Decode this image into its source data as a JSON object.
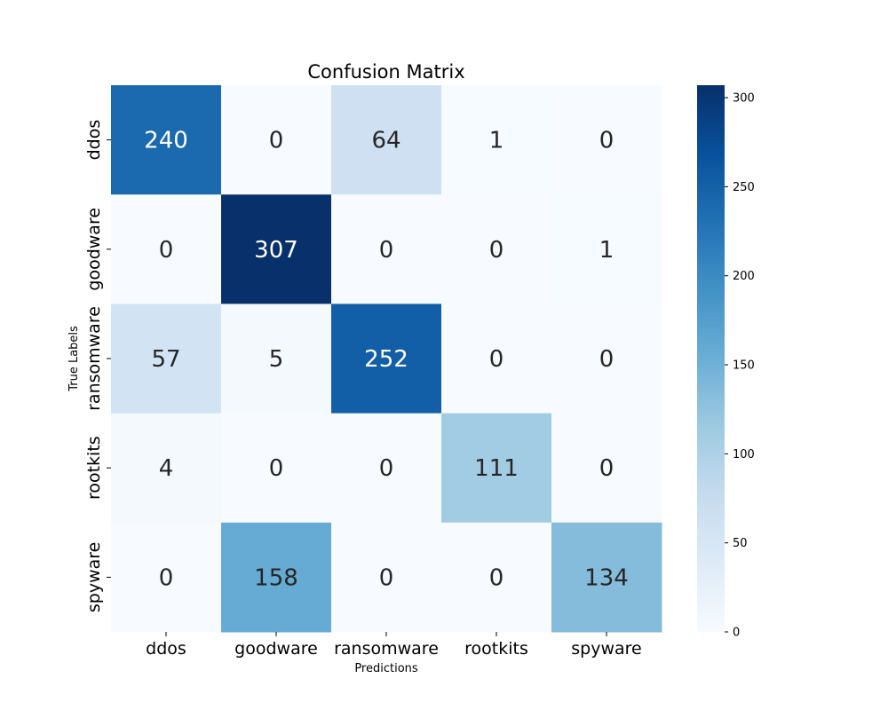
{
  "chart_data": {
    "type": "heatmap",
    "title": "Confusion Matrix",
    "xlabel": "Predictions",
    "ylabel": "True Labels",
    "x_categories": [
      "ddos",
      "goodware",
      "ransomware",
      "rootkits",
      "spyware"
    ],
    "y_categories": [
      "ddos",
      "goodware",
      "ransomware",
      "rootkits",
      "spyware"
    ],
    "values": [
      [
        240,
        0,
        64,
        1,
        0
      ],
      [
        0,
        307,
        0,
        0,
        1
      ],
      [
        57,
        5,
        252,
        0,
        0
      ],
      [
        4,
        0,
        0,
        111,
        0
      ],
      [
        0,
        158,
        0,
        0,
        134
      ]
    ],
    "colormap": "Blues",
    "vmin": 0,
    "vmax": 307,
    "colorbar_ticks": [
      0,
      50,
      100,
      150,
      200,
      250,
      300
    ],
    "colorbar_tick_labels": [
      "0",
      "50",
      "100",
      "150",
      "200",
      "250",
      "300"
    ]
  }
}
